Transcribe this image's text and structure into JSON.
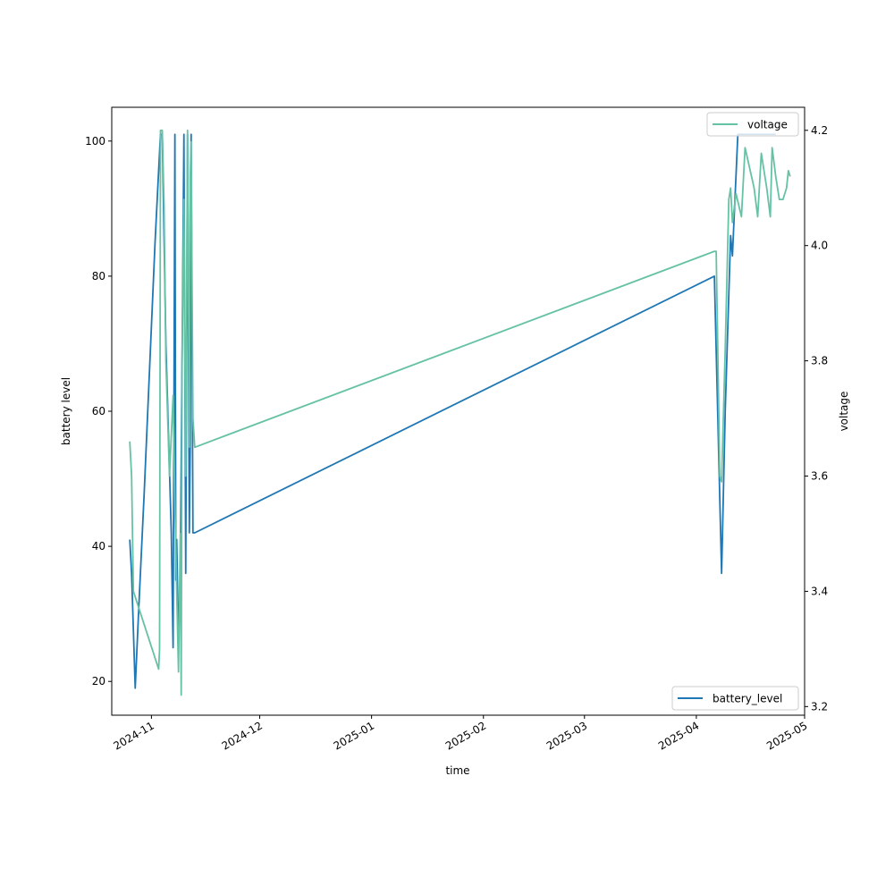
{
  "chart_data": {
    "type": "line",
    "xlabel": "time",
    "ylabel_left": "battery level",
    "ylabel_right": "voltage",
    "x_ticks": [
      "2024-11",
      "2024-12",
      "2025-01",
      "2025-02",
      "2025-03",
      "2025-04",
      "2025-05"
    ],
    "x_range": [
      "2024-10-21",
      "2025-05-01"
    ],
    "y_left_ticks": [
      20,
      40,
      60,
      80,
      100
    ],
    "y_left_range": [
      15,
      105
    ],
    "y_right_ticks": [
      "3.2",
      "3.4",
      "3.6",
      "3.8",
      "4.0",
      "4.2"
    ],
    "y_right_range": [
      3.185,
      4.24
    ],
    "grid": false,
    "colors": {
      "battery_level": "#1f77b4",
      "voltage": "#66c2a5"
    },
    "series": [
      {
        "name": "battery_level",
        "axis": "left",
        "legend_position": "lower-right",
        "points": [
          [
            "2024-10-26 00:00",
            41
          ],
          [
            "2024-10-26 12:00",
            36
          ],
          [
            "2024-10-27 12:00",
            19
          ],
          [
            "2024-10-28 12:00",
            31
          ],
          [
            "2024-10-30 00:00",
            48
          ],
          [
            "2024-11-02 00:00",
            85
          ],
          [
            "2024-11-03 12:00",
            101
          ],
          [
            "2024-11-04 00:00",
            101
          ],
          [
            "2024-11-05 00:00",
            70
          ],
          [
            "2024-11-06 12:00",
            42
          ],
          [
            "2024-11-07 00:00",
            25
          ],
          [
            "2024-11-07 12:00",
            101
          ],
          [
            "2024-11-07 18:00",
            35
          ],
          [
            "2024-11-08 00:00",
            41
          ],
          [
            "2024-11-08 12:00",
            26
          ],
          [
            "2024-11-09 00:00",
            36
          ],
          [
            "2024-11-10 00:00",
            101
          ],
          [
            "2024-11-10 12:00",
            36
          ],
          [
            "2024-11-11 00:00",
            101
          ],
          [
            "2024-11-11 12:00",
            42
          ],
          [
            "2024-11-11 18:00",
            55
          ],
          [
            "2024-11-12 00:00",
            101
          ],
          [
            "2024-11-12 12:00",
            42
          ],
          [
            "2024-11-13 00:00",
            42
          ],
          [
            "2025-04-06 00:00",
            80
          ],
          [
            "2025-04-08 00:00",
            36
          ],
          [
            "2025-04-09 00:00",
            60
          ],
          [
            "2025-04-10 12:00",
            86
          ],
          [
            "2025-04-11 00:00",
            83
          ],
          [
            "2025-04-12 12:00",
            101
          ],
          [
            "2025-04-14 00:00",
            101
          ],
          [
            "2025-04-23 00:00",
            101
          ]
        ]
      },
      {
        "name": "voltage",
        "axis": "right",
        "legend_position": "upper-right",
        "points": [
          [
            "2024-10-26 00:00",
            3.66
          ],
          [
            "2024-10-26 12:00",
            3.6
          ],
          [
            "2024-10-27 00:00",
            3.4
          ],
          [
            "2024-11-03 00:00",
            3.265
          ],
          [
            "2024-11-03 06:00",
            3.3
          ],
          [
            "2024-11-03 12:00",
            4.2
          ],
          [
            "2024-11-04 00:00",
            4.2
          ],
          [
            "2024-11-04 12:00",
            4.07
          ],
          [
            "2024-11-05 00:00",
            3.8
          ],
          [
            "2024-11-06 00:00",
            3.6
          ],
          [
            "2024-11-07 00:00",
            3.74
          ],
          [
            "2024-11-07 12:00",
            3.55
          ],
          [
            "2024-11-08 00:00",
            3.4
          ],
          [
            "2024-11-08 12:00",
            3.26
          ],
          [
            "2024-11-09 00:00",
            3.5
          ],
          [
            "2024-11-09 06:00",
            3.22
          ],
          [
            "2024-11-09 12:00",
            3.8
          ],
          [
            "2024-11-10 00:00",
            4.08
          ],
          [
            "2024-11-10 12:00",
            3.6
          ],
          [
            "2024-11-11 00:00",
            4.2
          ],
          [
            "2024-11-11 12:00",
            3.65
          ],
          [
            "2024-11-11 18:00",
            4.12
          ],
          [
            "2024-11-12 00:00",
            4.18
          ],
          [
            "2024-11-12 12:00",
            3.7
          ],
          [
            "2024-11-13 00:00",
            3.65
          ],
          [
            "2025-04-06 00:00",
            3.99
          ],
          [
            "2025-04-06 12:00",
            3.99
          ],
          [
            "2025-04-07 12:00",
            3.6
          ],
          [
            "2025-04-08 00:00",
            3.59
          ],
          [
            "2025-04-09 00:00",
            3.82
          ],
          [
            "2025-04-10 00:00",
            4.08
          ],
          [
            "2025-04-10 12:00",
            4.1
          ],
          [
            "2025-04-11 00:00",
            4.04
          ],
          [
            "2025-04-12 00:00",
            4.09
          ],
          [
            "2025-04-13 12:00",
            4.05
          ],
          [
            "2025-04-14 12:00",
            4.17
          ],
          [
            "2025-04-17 00:00",
            4.1
          ],
          [
            "2025-04-18 00:00",
            4.05
          ],
          [
            "2025-04-19 00:00",
            4.16
          ],
          [
            "2025-04-20 12:00",
            4.1
          ],
          [
            "2025-04-21 12:00",
            4.05
          ],
          [
            "2025-04-22 00:00",
            4.17
          ],
          [
            "2025-04-23 00:00",
            4.12
          ],
          [
            "2025-04-24 00:00",
            4.08
          ],
          [
            "2025-04-25 00:00",
            4.08
          ],
          [
            "2025-04-26 00:00",
            4.1
          ],
          [
            "2025-04-26 12:00",
            4.13
          ],
          [
            "2025-04-27 00:00",
            4.12
          ]
        ]
      }
    ]
  }
}
